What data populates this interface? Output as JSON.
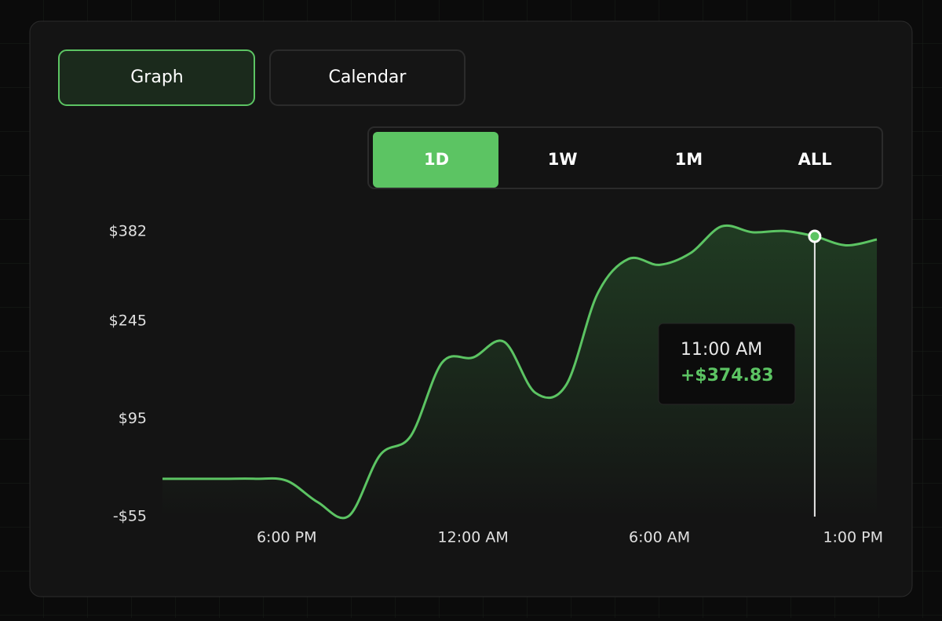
{
  "tabs": [
    "Graph",
    "Calendar"
  ],
  "ranges": [
    "1D",
    "1W",
    "1M",
    "ALL"
  ],
  "chart_data": {
    "type": "line",
    "color": "#5cc463",
    "categories": [
      null,
      null,
      null,
      null,
      "6:00 PM",
      null,
      null,
      null,
      null,
      null,
      "12:00 AM",
      null,
      null,
      null,
      null,
      null,
      "6:00 AM",
      null,
      null,
      null,
      null,
      null,
      null,
      "1:00 PM"
    ],
    "values": [
      3,
      3,
      3,
      3,
      0,
      -33,
      -54,
      39,
      69,
      181,
      189,
      213,
      135,
      147,
      286,
      340,
      331,
      349,
      390,
      381,
      383,
      374.83,
      361,
      370
    ],
    "value_labels": [
      null,
      null,
      null,
      null,
      null,
      null,
      null,
      null,
      null,
      null,
      null,
      null,
      null,
      null,
      null,
      null,
      null,
      null,
      null,
      null,
      null,
      "+$374.83",
      null,
      null
    ],
    "tooltip_time": "11:00 AM",
    "ylim": [
      -55,
      382
    ],
    "yticks": [
      {
        "value": 382,
        "label": "$382"
      },
      {
        "value": 245,
        "label": "$245"
      },
      {
        "value": 95,
        "label": "$95"
      },
      {
        "value": -55,
        "label": "-$55"
      }
    ]
  }
}
